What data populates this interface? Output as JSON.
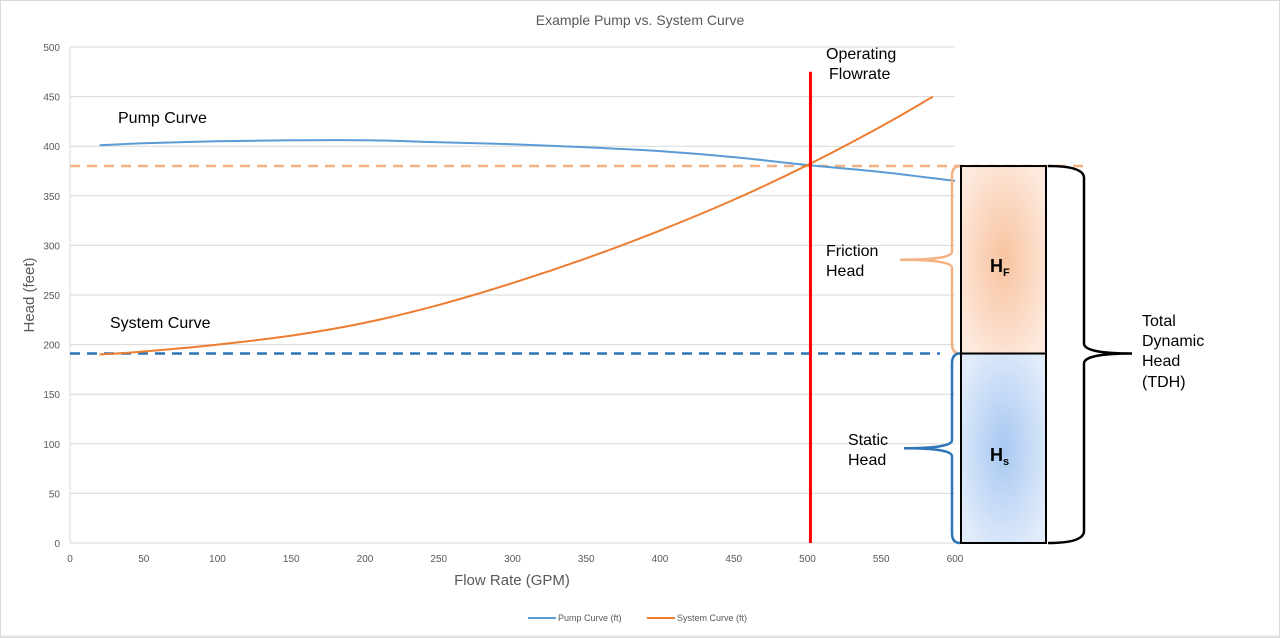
{
  "chart_data": {
    "type": "line",
    "title": "Example Pump vs. System Curve",
    "xlabel": "Flow Rate (GPM)",
    "ylabel": "Head (feet)",
    "xlim": [
      0,
      600
    ],
    "ylim": [
      0,
      500
    ],
    "xticks": [
      "0",
      "50",
      "100",
      "150",
      "200",
      "250",
      "300",
      "350",
      "400",
      "450",
      "500",
      "550",
      "600"
    ],
    "yticks": [
      "0",
      "50",
      "100",
      "150",
      "200",
      "250",
      "300",
      "350",
      "400",
      "450",
      "500"
    ],
    "grid": "horizontal",
    "legend_position": "bottom",
    "series": [
      {
        "name": "Pump Curve (ft)",
        "color": "#5b9bd5",
        "x": [
          20,
          50,
          100,
          150,
          200,
          250,
          300,
          350,
          400,
          450,
          500,
          550,
          600
        ],
        "y": [
          401,
          403,
          405,
          406,
          406,
          404,
          402,
          399,
          395,
          389,
          381,
          374,
          365
        ]
      },
      {
        "name": "System Curve (ft)",
        "color": "#ed7d31",
        "x": [
          20,
          50,
          100,
          150,
          200,
          250,
          300,
          350,
          400,
          450,
          500,
          550,
          585
        ],
        "y": [
          190,
          193,
          200,
          209,
          222,
          240,
          262,
          287,
          315,
          346,
          381,
          420,
          450
        ]
      }
    ],
    "reference_lines": {
      "operating_flowrate": 502,
      "operating_head": 380,
      "static_head": 191
    },
    "annotations": {
      "pump_curve": "Pump Curve",
      "system_curve": "System Curve",
      "operating_1": "Operating",
      "operating_2": "Flowrate",
      "friction_1": "Friction",
      "friction_2": "Head",
      "static_1": "Static",
      "static_2": "Head",
      "hf_main": "H",
      "hf_sub": "F",
      "hs_main": "H",
      "hs_sub": "s",
      "tdh": [
        "Total",
        "Dynamic",
        "Head",
        "(TDH)"
      ]
    },
    "colors": {
      "red_line": "#ff0000",
      "orange_dash": "#f4b183",
      "blue_dash": "#2e75b6",
      "hf_fill": "#f8cbad",
      "hs_fill": "#b4cff3"
    }
  }
}
